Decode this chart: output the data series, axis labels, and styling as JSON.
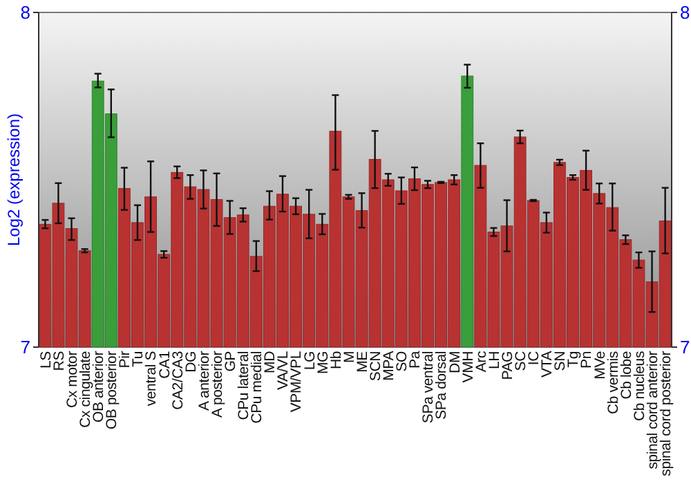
{
  "chart_data": {
    "type": "bar",
    "ylabel": "Log2 (expression)",
    "categories": [
      "LS",
      "RS",
      "Cx motor",
      "Cx cingulate",
      "OB anterior",
      "OB posterior",
      "Pir",
      "Tu",
      "ventral S",
      "CA1",
      "CA2/CA3",
      "DG",
      "A anterior",
      "A posterior",
      "GP",
      "CPu lateral",
      "CPu medial",
      "MD",
      "VA/VL",
      "VPM/VPL",
      "LG",
      "MG",
      "Hb",
      "M",
      "ME",
      "SCN",
      "MPA",
      "SO",
      "Pa",
      "SPa ventral",
      "SPa dorsal",
      "DM",
      "VMH",
      "Arc",
      "LH",
      "PAG",
      "SC",
      "IC",
      "VTA",
      "SN",
      "Tg",
      "Pn",
      "MVe",
      "Cb vermis",
      "Cb lobe",
      "Cb nucleus",
      "spinal cord anterior",
      "spinal cord posterior"
    ],
    "values": [
      7.367,
      7.43,
      7.354,
      7.288,
      7.795,
      7.697,
      7.474,
      7.372,
      7.449,
      7.277,
      7.522,
      7.479,
      7.471,
      7.441,
      7.387,
      7.395,
      7.271,
      7.421,
      7.457,
      7.421,
      7.397,
      7.367,
      7.645,
      7.449,
      7.408,
      7.561,
      7.5,
      7.467,
      7.503,
      7.486,
      7.492,
      7.5,
      7.81,
      7.543,
      7.344,
      7.362,
      7.628,
      7.438,
      7.372,
      7.552,
      7.507,
      7.528,
      7.459,
      7.417,
      7.321,
      7.26,
      7.195,
      7.377
    ],
    "errors": [
      [
        7.355,
        7.38
      ],
      [
        7.37,
        7.49
      ],
      [
        7.32,
        7.385
      ],
      [
        7.283,
        7.293
      ],
      [
        7.776,
        7.817
      ],
      [
        7.627,
        7.77
      ],
      [
        7.41,
        7.536
      ],
      [
        7.32,
        7.424
      ],
      [
        7.344,
        7.555
      ],
      [
        7.267,
        7.287
      ],
      [
        7.505,
        7.54
      ],
      [
        7.443,
        7.514
      ],
      [
        7.414,
        7.528
      ],
      [
        7.362,
        7.519
      ],
      [
        7.338,
        7.437
      ],
      [
        7.375,
        7.415
      ],
      [
        7.227,
        7.317
      ],
      [
        7.381,
        7.466
      ],
      [
        7.405,
        7.511
      ],
      [
        7.397,
        7.445
      ],
      [
        7.325,
        7.47
      ],
      [
        7.337,
        7.398
      ],
      [
        7.53,
        7.753
      ],
      [
        7.443,
        7.455
      ],
      [
        7.357,
        7.46
      ],
      [
        7.475,
        7.646
      ],
      [
        7.482,
        7.518
      ],
      [
        7.428,
        7.507
      ],
      [
        7.469,
        7.537
      ],
      [
        7.475,
        7.497
      ],
      [
        7.49,
        7.494
      ],
      [
        7.486,
        7.514
      ],
      [
        7.775,
        7.844
      ],
      [
        7.476,
        7.609
      ],
      [
        7.332,
        7.356
      ],
      [
        7.286,
        7.439
      ],
      [
        7.609,
        7.647
      ],
      [
        7.436,
        7.44
      ],
      [
        7.342,
        7.402
      ],
      [
        7.544,
        7.56
      ],
      [
        7.5,
        7.514
      ],
      [
        7.47,
        7.587
      ],
      [
        7.429,
        7.489
      ],
      [
        7.348,
        7.489
      ],
      [
        7.308,
        7.334
      ],
      [
        7.237,
        7.283
      ],
      [
        7.105,
        7.286
      ],
      [
        7.28,
        7.476
      ]
    ],
    "colors": [
      "#b83232",
      "#b83232",
      "#b83232",
      "#b83232",
      "#3a9e3a",
      "#3a9e3a",
      "#b83232",
      "#b83232",
      "#b83232",
      "#b83232",
      "#b83232",
      "#b83232",
      "#b83232",
      "#b83232",
      "#b83232",
      "#b83232",
      "#b83232",
      "#b83232",
      "#b83232",
      "#b83232",
      "#b83232",
      "#b83232",
      "#b83232",
      "#b83232",
      "#b83232",
      "#b83232",
      "#b83232",
      "#b83232",
      "#b83232",
      "#b83232",
      "#b83232",
      "#b83232",
      "#3a9e3a",
      "#b83232",
      "#b83232",
      "#b83232",
      "#b83232",
      "#b83232",
      "#b83232",
      "#b83232",
      "#b83232",
      "#b83232",
      "#b83232",
      "#b83232",
      "#b83232",
      "#b83232",
      "#b83232",
      "#b83232"
    ],
    "ylim": [
      7,
      8
    ],
    "yticks": [
      7,
      8
    ],
    "y2lim": [
      7,
      8
    ],
    "y2ticks": [
      7,
      8
    ],
    "grid": false
  }
}
